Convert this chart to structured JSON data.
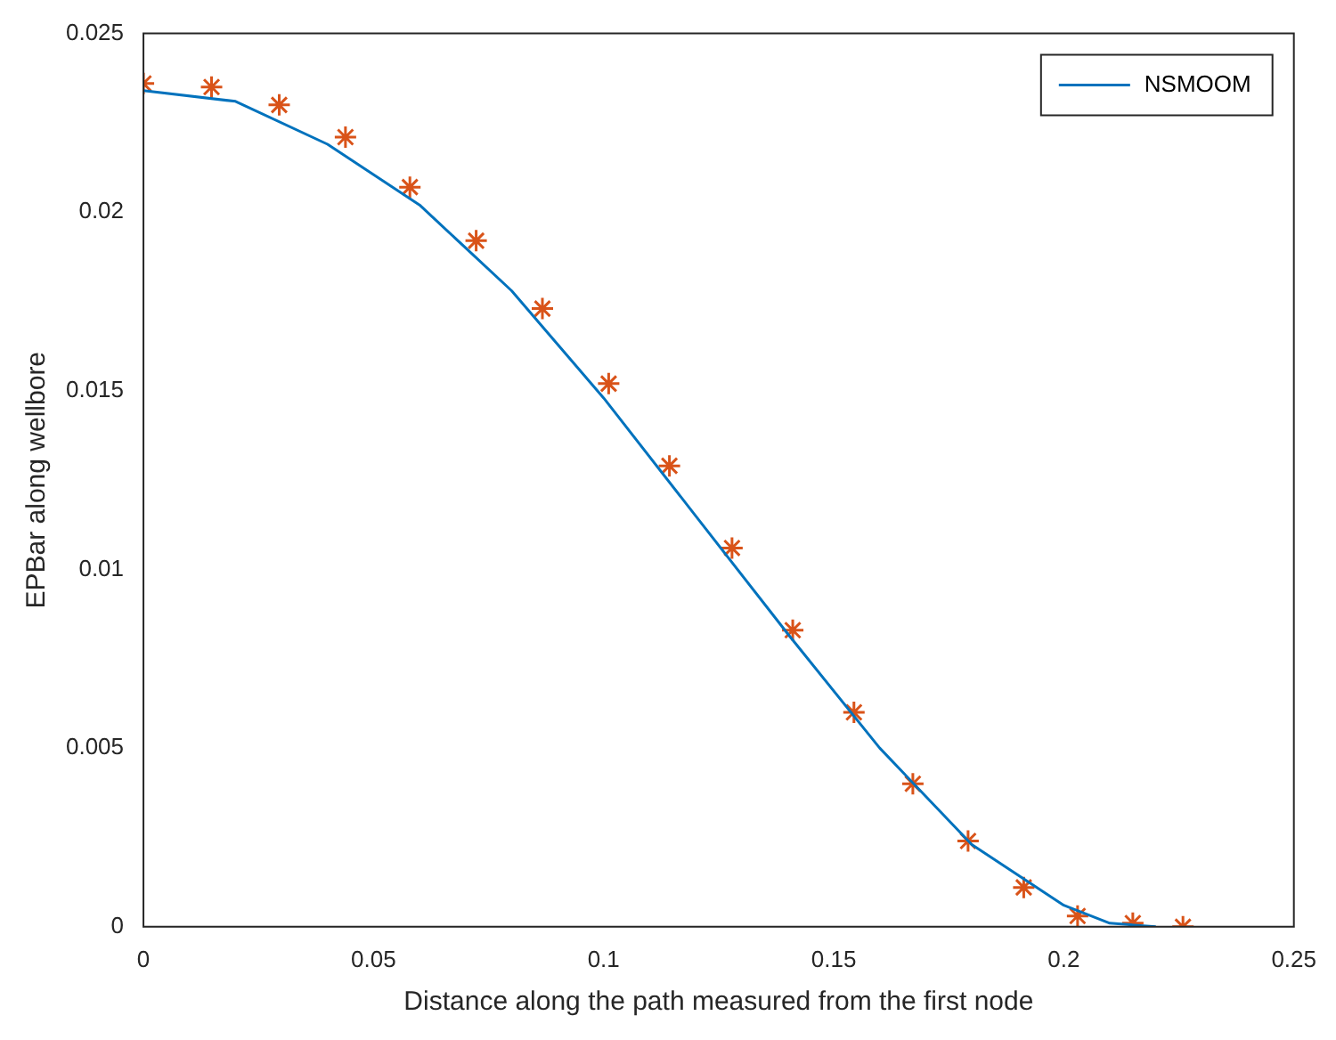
{
  "chart_data": {
    "type": "line",
    "xlabel": "Distance along the path measured from the first node",
    "ylabel": "EPBar along wellbore",
    "xlim": [
      0,
      0.25
    ],
    "xticks": [
      0,
      0.05,
      0.1,
      0.15,
      0.2,
      0.25
    ],
    "ylim": [
      0,
      0.025
    ],
    "yticks": [
      0,
      0.005,
      0.01,
      0.015,
      0.02,
      0.025
    ],
    "grid": false,
    "legend": "top right",
    "series": [
      {
        "name": "NSMOOM",
        "color": "#0072bd",
        "marker": "none",
        "line_style": "solid",
        "x": [
          0,
          0.02,
          0.04,
          0.06,
          0.08,
          0.1,
          0.12,
          0.14,
          0.16,
          0.18,
          0.2,
          0.21,
          0.22
        ],
        "values": [
          0.0234,
          0.0231,
          0.0219,
          0.0202,
          0.0178,
          0.0148,
          0.0115,
          0.0082,
          0.005,
          0.0023,
          0.0006,
          0.0001,
          0
        ]
      },
      {
        "type": "scatter",
        "color": "#d95319",
        "marker": "cross",
        "x": [
          0,
          0.0148,
          0.0295,
          0.0439,
          0.0579,
          0.0723,
          0.0867,
          0.1011,
          0.1143,
          0.1279,
          0.1411,
          0.1544,
          0.1672,
          0.1792,
          0.1913,
          0.203,
          0.215,
          0.2259
        ],
        "values": [
          0.0236,
          0.0235,
          0.023,
          0.0221,
          0.0207,
          0.0192,
          0.0173,
          0.0152,
          0.0129,
          0.0106,
          0.0083,
          0.006,
          0.004,
          0.0024,
          0.0011,
          0.0003,
          0.0001,
          0
        ]
      }
    ]
  }
}
